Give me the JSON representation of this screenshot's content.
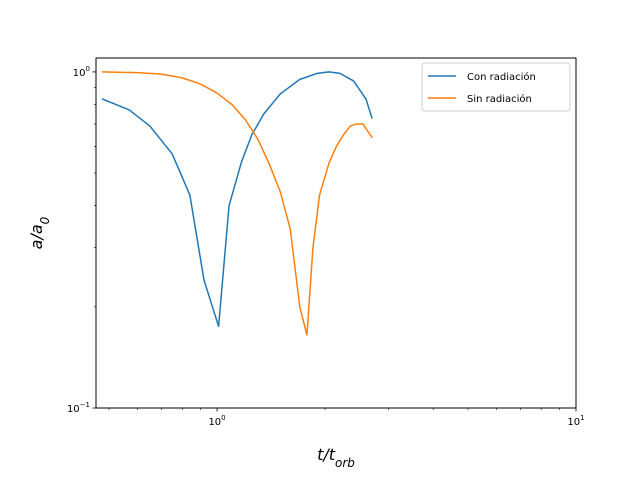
{
  "chart_data": {
    "type": "line",
    "xscale": "log",
    "yscale": "log",
    "xlim": [
      0.46,
      10
    ],
    "ylim": [
      0.1,
      1.1
    ],
    "x_ticks": [
      {
        "value": 1,
        "base": "10",
        "exp": "0"
      },
      {
        "value": 10,
        "base": "10",
        "exp": "1"
      }
    ],
    "y_ticks": [
      {
        "value": 0.1,
        "base": "10",
        "exp": "−1"
      },
      {
        "value": 1,
        "base": "10",
        "exp": "0"
      }
    ],
    "xlabel": {
      "main": "t/t",
      "sub": "orb"
    },
    "ylabel": {
      "main": "a/a",
      "sub": "0"
    },
    "grid": false,
    "legend_position": "upper-right",
    "series": [
      {
        "name": "Con radiación",
        "color": "#1f77b4",
        "x": [
          0.48,
          0.57,
          0.65,
          0.75,
          0.84,
          0.92,
          1.01,
          1.08,
          1.17,
          1.25,
          1.35,
          1.5,
          1.7,
          1.9,
          2.05,
          2.2,
          2.4,
          2.6,
          2.7
        ],
        "y": [
          0.83,
          0.77,
          0.69,
          0.57,
          0.43,
          0.24,
          0.175,
          0.4,
          0.54,
          0.65,
          0.75,
          0.86,
          0.95,
          0.99,
          1.0,
          0.99,
          0.94,
          0.83,
          0.73
        ]
      },
      {
        "name": "Sin radiación",
        "color": "#ff7f0e",
        "x": [
          0.48,
          0.6,
          0.7,
          0.8,
          0.9,
          1.0,
          1.1,
          1.2,
          1.3,
          1.4,
          1.5,
          1.6,
          1.7,
          1.78,
          1.85,
          1.93,
          2.05,
          2.15,
          2.25,
          2.35,
          2.45,
          2.55,
          2.62,
          2.7
        ],
        "y": [
          1.0,
          0.995,
          0.985,
          0.96,
          0.92,
          0.865,
          0.8,
          0.72,
          0.63,
          0.53,
          0.44,
          0.34,
          0.2,
          0.165,
          0.3,
          0.43,
          0.535,
          0.6,
          0.65,
          0.69,
          0.7,
          0.7,
          0.67,
          0.64
        ]
      }
    ]
  }
}
